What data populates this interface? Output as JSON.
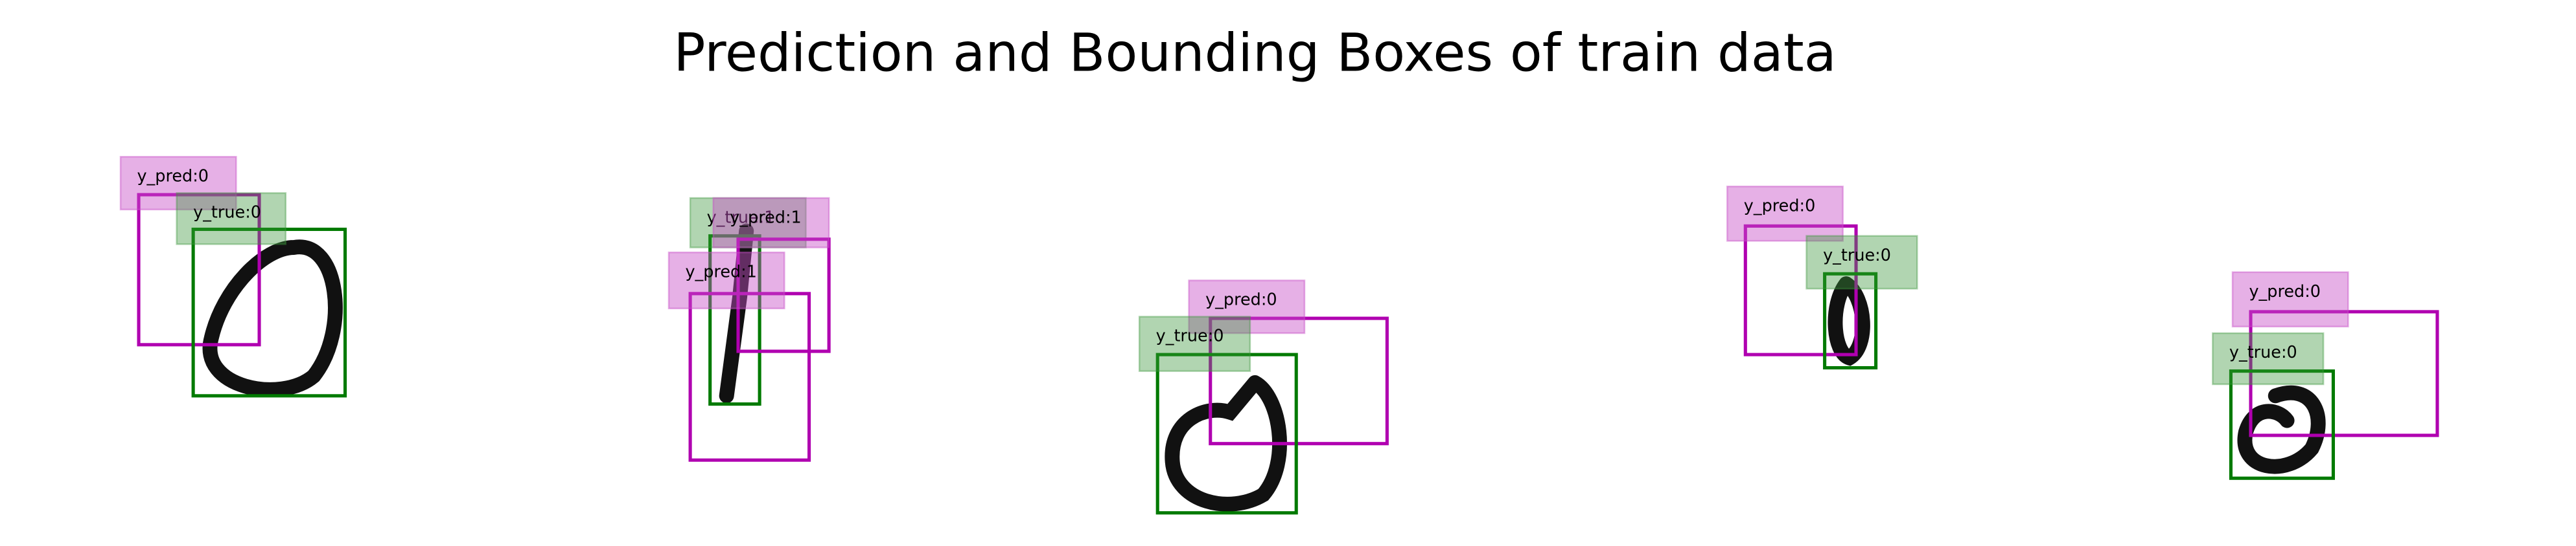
{
  "title": "Prediction and Bounding Boxes of train data",
  "panels": [
    {
      "boxes": [
        {
          "label": "y_pred:0"
        },
        {
          "label": "y_true:0"
        }
      ]
    },
    {
      "boxes": [
        {
          "label": "y_true:1"
        },
        {
          "label": "y_pred:1"
        },
        {
          "label": "y_pred:1"
        }
      ]
    },
    {
      "boxes": [
        {
          "label": "y_pred:0"
        },
        {
          "label": "y_true:0"
        }
      ]
    },
    {
      "boxes": [
        {
          "label": "y_pred:0"
        },
        {
          "label": "y_true:0"
        }
      ]
    },
    {
      "boxes": [
        {
          "label": "y_pred:0"
        },
        {
          "label": "y_true:0"
        }
      ]
    }
  ]
}
